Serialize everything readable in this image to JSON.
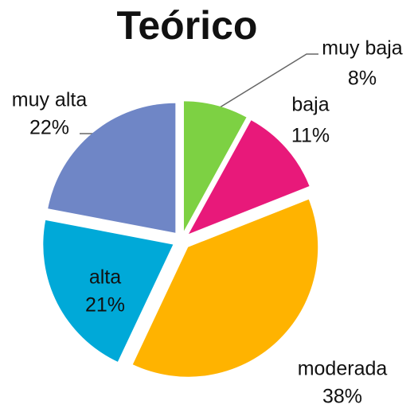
{
  "chart_data": {
    "type": "pie",
    "title": "Teórico",
    "categories": [
      "muy baja",
      "baja",
      "moderada",
      "alta",
      "muy alta"
    ],
    "values": [
      8,
      11,
      38,
      21,
      22
    ],
    "value_labels": [
      "8%",
      "11%",
      "38%",
      "21%",
      "22%"
    ],
    "colors": [
      "#7dd143",
      "#e8197a",
      "#ffb300",
      "#00a9d8",
      "#6f86c6"
    ]
  }
}
